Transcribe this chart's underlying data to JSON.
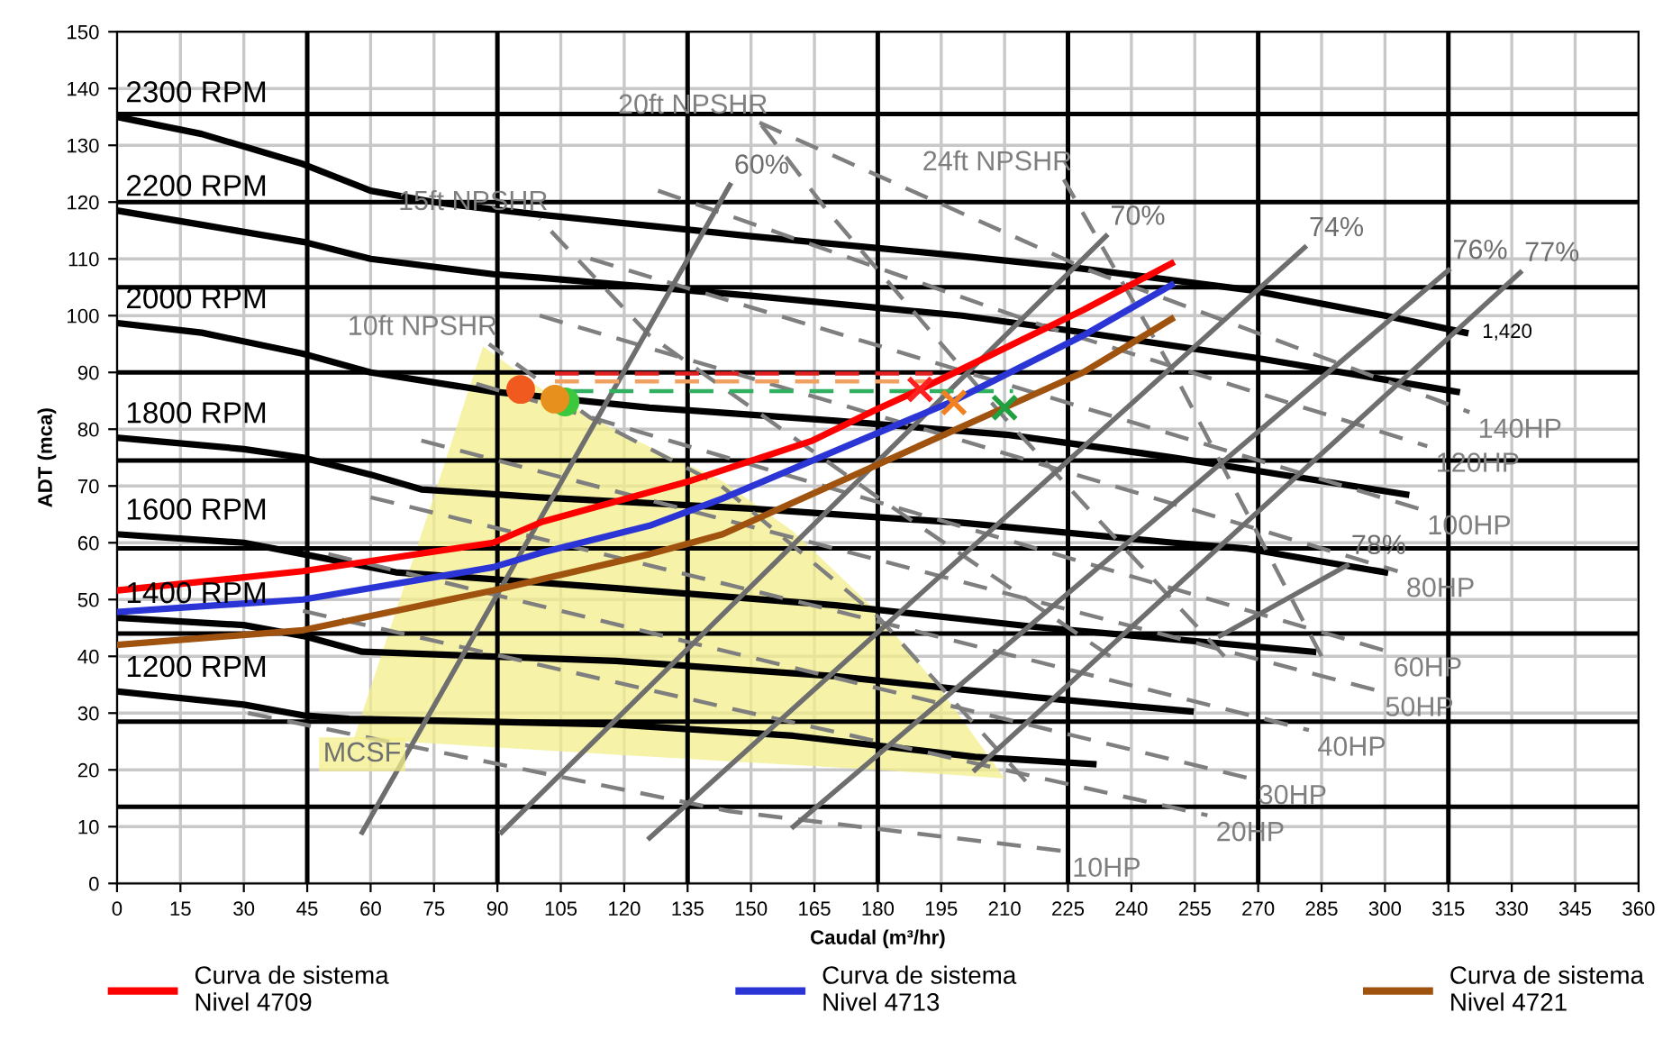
{
  "chart_data": {
    "type": "line",
    "xlabel": "Caudal (m³/hr)",
    "ylabel": "ADT (mca)",
    "xlim": [
      0,
      360
    ],
    "ylim": [
      0,
      150
    ],
    "xticks": [
      0,
      15,
      30,
      45,
      60,
      75,
      90,
      105,
      120,
      135,
      150,
      165,
      180,
      195,
      210,
      225,
      240,
      255,
      270,
      285,
      300,
      315,
      330,
      345,
      360
    ],
    "yticks": [
      0,
      10,
      20,
      30,
      40,
      50,
      60,
      70,
      80,
      90,
      100,
      110,
      120,
      130,
      140,
      150
    ],
    "grid": true,
    "legend": "bottom",
    "ref_lines": [
      {
        "axis": "x",
        "value": 45,
        "color": "#000000"
      },
      {
        "axis": "x",
        "value": 90,
        "color": "#000000"
      },
      {
        "axis": "x",
        "value": 135,
        "color": "#000000"
      },
      {
        "axis": "x",
        "value": 180,
        "color": "#000000"
      },
      {
        "axis": "x",
        "value": 225,
        "color": "#000000"
      },
      {
        "axis": "x",
        "value": 270,
        "color": "#000000"
      },
      {
        "axis": "x",
        "value": 315,
        "color": "#000000"
      },
      {
        "axis": "y",
        "value": 13.5,
        "color": "#000000"
      },
      {
        "axis": "y",
        "value": 28.5,
        "color": "#000000"
      },
      {
        "axis": "y",
        "value": 44,
        "color": "#000000"
      },
      {
        "axis": "y",
        "value": 59,
        "color": "#000000"
      },
      {
        "axis": "y",
        "value": 74.5,
        "color": "#000000"
      },
      {
        "axis": "y",
        "value": 90,
        "color": "#000000"
      },
      {
        "axis": "y",
        "value": 105,
        "color": "#000000"
      },
      {
        "axis": "y",
        "value": 120,
        "color": "#000000"
      },
      {
        "axis": "y",
        "value": 135.5,
        "color": "#000000"
      }
    ],
    "series": [
      {
        "type": "area",
        "name": "MCSF",
        "color": "#f3ef8c",
        "x": [
          56,
          70,
          86.6,
          100.6,
          120,
          143,
          160,
          178.7,
          195,
          210,
          180,
          120,
          56
        ],
        "values": [
          25.5,
          57,
          94.6,
          87,
          79,
          71,
          62,
          48.7,
          34,
          18.5,
          20,
          22.6,
          25.5
        ]
      },
      {
        "name": "2300 RPM",
        "color": "#000000",
        "line_style": "solid",
        "x": [
          319,
          300,
          268,
          228,
          200,
          150,
          100,
          89,
          75,
          60,
          44,
          20,
          0
        ],
        "values": [
          97,
          100,
          104.5,
          108.3,
          110.5,
          114,
          117.8,
          118.7,
          120,
          122,
          126.7,
          132,
          135
        ]
      },
      {
        "name": "2200 RPM",
        "color": "#000000",
        "line_style": "solid",
        "x": [
          317,
          270,
          228,
          200,
          150,
          100,
          89,
          60,
          44,
          20,
          0
        ],
        "values": [
          86.6,
          92.5,
          97.1,
          100,
          103.5,
          106.7,
          107.3,
          110,
          113,
          116,
          118.5
        ]
      },
      {
        "name": "2000 RPM",
        "color": "#000000",
        "line_style": "solid",
        "x": [
          305,
          250,
          211,
          170,
          126,
          89,
          60,
          44,
          20,
          0
        ],
        "values": [
          68.5,
          75,
          79,
          81.5,
          83.8,
          86.6,
          90,
          93.3,
          97,
          98.7
        ]
      },
      {
        "name": "1800 RPM",
        "color": "#000000",
        "line_style": "solid",
        "x": [
          300,
          267,
          250,
          200,
          150,
          100,
          72,
          60,
          44,
          30,
          0
        ],
        "values": [
          54.8,
          59,
          60,
          63.5,
          66,
          68,
          69.4,
          72,
          75,
          76.5,
          78.5
        ]
      },
      {
        "name": "1600 RPM",
        "color": "#000000",
        "line_style": "solid",
        "x": [
          283,
          217,
          170,
          118,
          66,
          44,
          30,
          0
        ],
        "values": [
          40.8,
          45.2,
          49,
          52,
          54.8,
          58,
          60,
          61.5
        ]
      },
      {
        "name": "1400 RPM",
        "color": "#000000",
        "line_style": "solid",
        "x": [
          254,
          217,
          170,
          118,
          58,
          44,
          30,
          0
        ],
        "values": [
          30.3,
          32.8,
          36.5,
          39.2,
          40.8,
          43.6,
          45.5,
          46.8
        ]
      },
      {
        "name": "1200 RPM",
        "color": "#000000",
        "line_style": "solid",
        "x": [
          231,
          203,
          160,
          118,
          55,
          44,
          30,
          0
        ],
        "values": [
          21,
          22.3,
          26,
          28,
          29,
          29.6,
          31.5,
          33.8
        ]
      },
      {
        "name": "140HP",
        "color": "#7f7f7f",
        "line_style": "dashed",
        "x": [
          152,
          230,
          320
        ],
        "values": [
          134,
          108,
          83
        ]
      },
      {
        "name": "120HP",
        "color": "#7f7f7f",
        "line_style": "dashed",
        "x": [
          128,
          220,
          310
        ],
        "values": [
          122,
          98,
          77
        ]
      },
      {
        "name": "100HP",
        "color": "#7f7f7f",
        "line_style": "dashed",
        "x": [
          112,
          210,
          308
        ],
        "values": [
          110,
          88,
          66
        ]
      },
      {
        "name": "80HP",
        "color": "#7f7f7f",
        "line_style": "dashed",
        "x": [
          100,
          200,
          303
        ],
        "values": [
          100,
          78,
          55
        ]
      },
      {
        "name": "60HP",
        "color": "#7f7f7f",
        "line_style": "dashed",
        "x": [
          85,
          190,
          300
        ],
        "values": [
          88,
          65,
          41
        ]
      },
      {
        "name": "50HP",
        "color": "#7f7f7f",
        "line_style": "dashed",
        "x": [
          72,
          180,
          298
        ],
        "values": [
          78,
          57,
          34
        ]
      },
      {
        "name": "40HP",
        "color": "#7f7f7f",
        "line_style": "dashed",
        "x": [
          60,
          170,
          282
        ],
        "values": [
          68,
          48,
          27
        ]
      },
      {
        "name": "30HP",
        "color": "#7f7f7f",
        "line_style": "dashed",
        "x": [
          50,
          160,
          268
        ],
        "values": [
          58,
          38,
          18.5
        ]
      },
      {
        "name": "20HP",
        "color": "#7f7f7f",
        "line_style": "dashed",
        "x": [
          44,
          150,
          258
        ],
        "values": [
          48,
          30,
          12
        ]
      },
      {
        "name": "10HP",
        "color": "#7f7f7f",
        "line_style": "dashed",
        "x": [
          31,
          145,
          224
        ],
        "values": [
          30,
          12.7,
          5.7
        ]
      },
      {
        "name": "10ft NPSHR",
        "color": "#7f7f7f",
        "line_style": "dashed",
        "x": [
          215,
          180,
          143,
          112,
          88
        ],
        "values": [
          18,
          47,
          70,
          82,
          95
        ]
      },
      {
        "name": "15ft NPSHR",
        "color": "#7f7f7f",
        "line_style": "dashed",
        "x": [
          235,
          180,
          126,
          100
        ],
        "values": [
          40,
          68,
          96.5,
          117
        ]
      },
      {
        "name": "20ft NPSHR",
        "color": "#7f7f7f",
        "line_style": "dashed",
        "x": [
          262,
          210,
          168,
          152
        ],
        "values": [
          40,
          82,
          118.5,
          134
        ]
      },
      {
        "name": "24ft NPSHR",
        "color": "#7f7f7f",
        "line_style": "dashed",
        "x": [
          285,
          250,
          224
        ],
        "values": [
          40,
          90,
          124
        ]
      },
      {
        "name": "60%",
        "color": "#6e6e6e",
        "line_style": "solid",
        "x": [
          58,
          145
        ],
        "values": [
          9,
          123
        ]
      },
      {
        "name": "70%",
        "color": "#6e6e6e",
        "line_style": "solid",
        "x": [
          91,
          234
        ],
        "values": [
          9,
          114
        ]
      },
      {
        "name": "74%",
        "color": "#6e6e6e",
        "line_style": "solid",
        "x": [
          126,
          281
        ],
        "values": [
          8,
          112
        ]
      },
      {
        "name": "76%",
        "color": "#6e6e6e",
        "line_style": "solid",
        "x": [
          160,
          315
        ],
        "values": [
          10,
          108
        ]
      },
      {
        "name": "77%",
        "color": "#6e6e6e",
        "line_style": "solid",
        "x": [
          203,
          332
        ],
        "values": [
          20,
          107.6
        ]
      },
      {
        "name": "78%",
        "color": "#6e6e6e",
        "line_style": "solid",
        "x": [
          261,
          291
        ],
        "values": [
          43.6,
          56
        ]
      },
      {
        "name": "Curva de sistema\nNivel 4709",
        "color": "#ff0000",
        "line_style": "solid",
        "x": [
          0,
          44,
          89,
          100.6,
          134.8,
          164.6,
          179.5,
          190,
          228.6,
          249.5
        ],
        "values": [
          51.6,
          55,
          60,
          63.7,
          70.7,
          78,
          83.4,
          87,
          101,
          109.2
        ]
      },
      {
        "name": "Curva de sistema\nNivel 4713",
        "color": "#2b35d6",
        "line_style": "solid",
        "x": [
          0,
          44,
          89,
          100.6,
          126,
          143.3,
          198,
          228.6,
          249.5
        ],
        "values": [
          47.8,
          50,
          55.7,
          58.3,
          63,
          67.8,
          85,
          96.5,
          105.4
        ]
      },
      {
        "name": "Curva de sistema\nNivel 4721",
        "color": "#a0520f",
        "line_style": "solid",
        "x": [
          0,
          44,
          89,
          126,
          143.3,
          210,
          228.6,
          249.5
        ],
        "values": [
          42,
          44.6,
          51.6,
          58,
          61.5,
          83.8,
          90,
          99.4
        ]
      },
      {
        "color": "#e02020",
        "line_style": "dashed",
        "x": [
          103.6,
          193
        ],
        "values": [
          89.8,
          89.8
        ]
      },
      {
        "color": "#f0a060",
        "line_style": "dashed",
        "x": [
          103.6,
          198
        ],
        "values": [
          88.4,
          88.4
        ]
      },
      {
        "color": "#30b060",
        "line_style": "dashed",
        "x": [
          107,
          212
        ],
        "values": [
          86.7,
          86.7
        ]
      },
      {
        "type": "scatter",
        "marker": "circle",
        "x": [
          106,
          103.6,
          95.5
        ],
        "values": [
          84.8,
          85.3,
          87
        ],
        "colors": [
          "#3cc83c",
          "#e8901e",
          "#f05a1e"
        ]
      },
      {
        "type": "scatter",
        "marker": "cross",
        "x": [
          190,
          198,
          210
        ],
        "values": [
          87,
          84.7,
          83.8
        ],
        "colors": [
          "#ff2020",
          "#f08020",
          "#20a040"
        ]
      }
    ],
    "annotations": [
      {
        "text": "1,420",
        "x": 319,
        "y": 97
      }
    ]
  }
}
